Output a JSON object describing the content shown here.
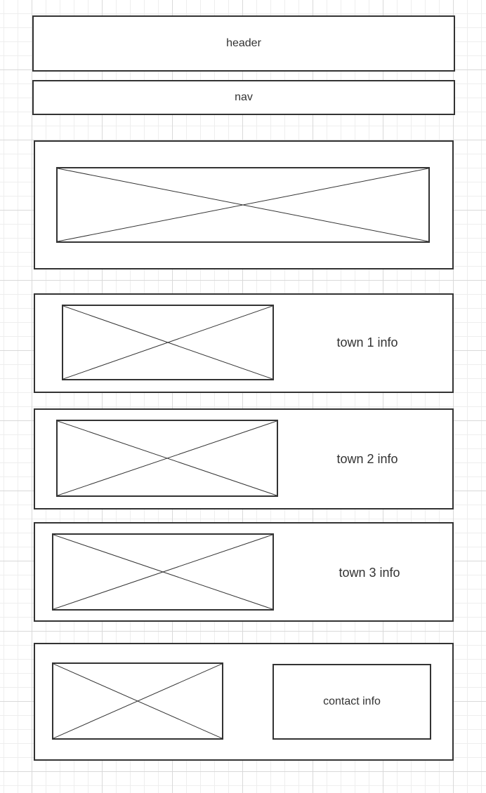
{
  "header": {
    "label": "header"
  },
  "nav": {
    "label": "nav"
  },
  "towns": [
    {
      "label": "town 1 info"
    },
    {
      "label": "town 2 info"
    },
    {
      "label": "town 3 info"
    }
  ],
  "contact": {
    "label": "contact info"
  },
  "colors": {
    "stroke": "#333333",
    "grid_major": "#d9d9d9",
    "grid_minor": "#eeeeee",
    "background": "#ffffff"
  }
}
